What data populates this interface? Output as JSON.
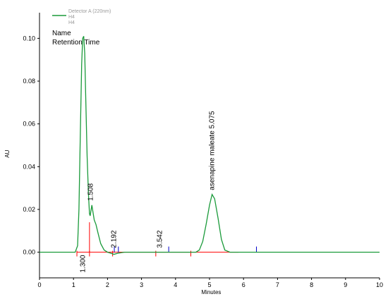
{
  "legend": {
    "series_label": "Detector A (220nm)",
    "line2": "H4",
    "line3": "H4"
  },
  "info_labels": [
    "Name",
    "Retention Time"
  ],
  "colors": {
    "trace": "#1a9a3a",
    "baseline_marker": "#ff0000",
    "boundary_marker": "#0000cc",
    "axis": "#000000"
  },
  "chart_data": {
    "type": "line",
    "xlabel": "Minutes",
    "ylabel": "AU",
    "xlim": [
      0,
      10
    ],
    "ylim": [
      -0.012,
      0.112
    ],
    "x_ticks": [
      "0",
      "1",
      "2",
      "3",
      "4",
      "5",
      "6",
      "7",
      "8",
      "9",
      "10"
    ],
    "y_ticks": [
      "0.00",
      "0.02",
      "0.04",
      "0.06",
      "0.08",
      "0.10"
    ],
    "grid": false,
    "series": [
      {
        "name": "Detector A (220nm)",
        "x": [
          0.0,
          1.05,
          1.12,
          1.16,
          1.2,
          1.24,
          1.27,
          1.3,
          1.33,
          1.36,
          1.4,
          1.44,
          1.47,
          1.49,
          1.51,
          1.54,
          1.57,
          1.61,
          1.66,
          1.72,
          1.8,
          1.9,
          2.0,
          2.1,
          2.19,
          2.3,
          2.5,
          3.0,
          3.54,
          4.0,
          4.6,
          4.7,
          4.8,
          4.9,
          5.0,
          5.075,
          5.15,
          5.25,
          5.35,
          5.45,
          5.6,
          6.0,
          7.0,
          8.0,
          9.0,
          10.0
        ],
        "y": [
          0.0,
          0.0,
          0.003,
          0.02,
          0.055,
          0.088,
          0.1,
          0.101,
          0.093,
          0.072,
          0.045,
          0.027,
          0.018,
          0.017,
          0.019,
          0.022,
          0.019,
          0.015,
          0.013,
          0.009,
          0.004,
          0.001,
          0.0,
          -0.0005,
          -0.001,
          -0.0005,
          0.0,
          0.0,
          0.0,
          0.0,
          0.0,
          0.001,
          0.005,
          0.013,
          0.022,
          0.027,
          0.025,
          0.016,
          0.006,
          0.001,
          0.0,
          0.0,
          0.0,
          0.0,
          0.0,
          0.0
        ]
      }
    ],
    "peaks": [
      {
        "label": "1.300",
        "x": 1.3,
        "y": 0.101
      },
      {
        "label": "1.508",
        "x": 1.508,
        "y": 0.022
      },
      {
        "label": "2.192",
        "x": 2.192,
        "y": 0.0
      },
      {
        "label": "3.542",
        "x": 3.542,
        "y": 0.0
      },
      {
        "label": "asenapine maleate  5.075",
        "x": 5.075,
        "y": 0.027
      }
    ],
    "baseline_markers": [
      1.1,
      1.47,
      2.15,
      3.42,
      4.45
    ],
    "boundary_markers": [
      2.2,
      2.32,
      3.8,
      6.38
    ]
  }
}
